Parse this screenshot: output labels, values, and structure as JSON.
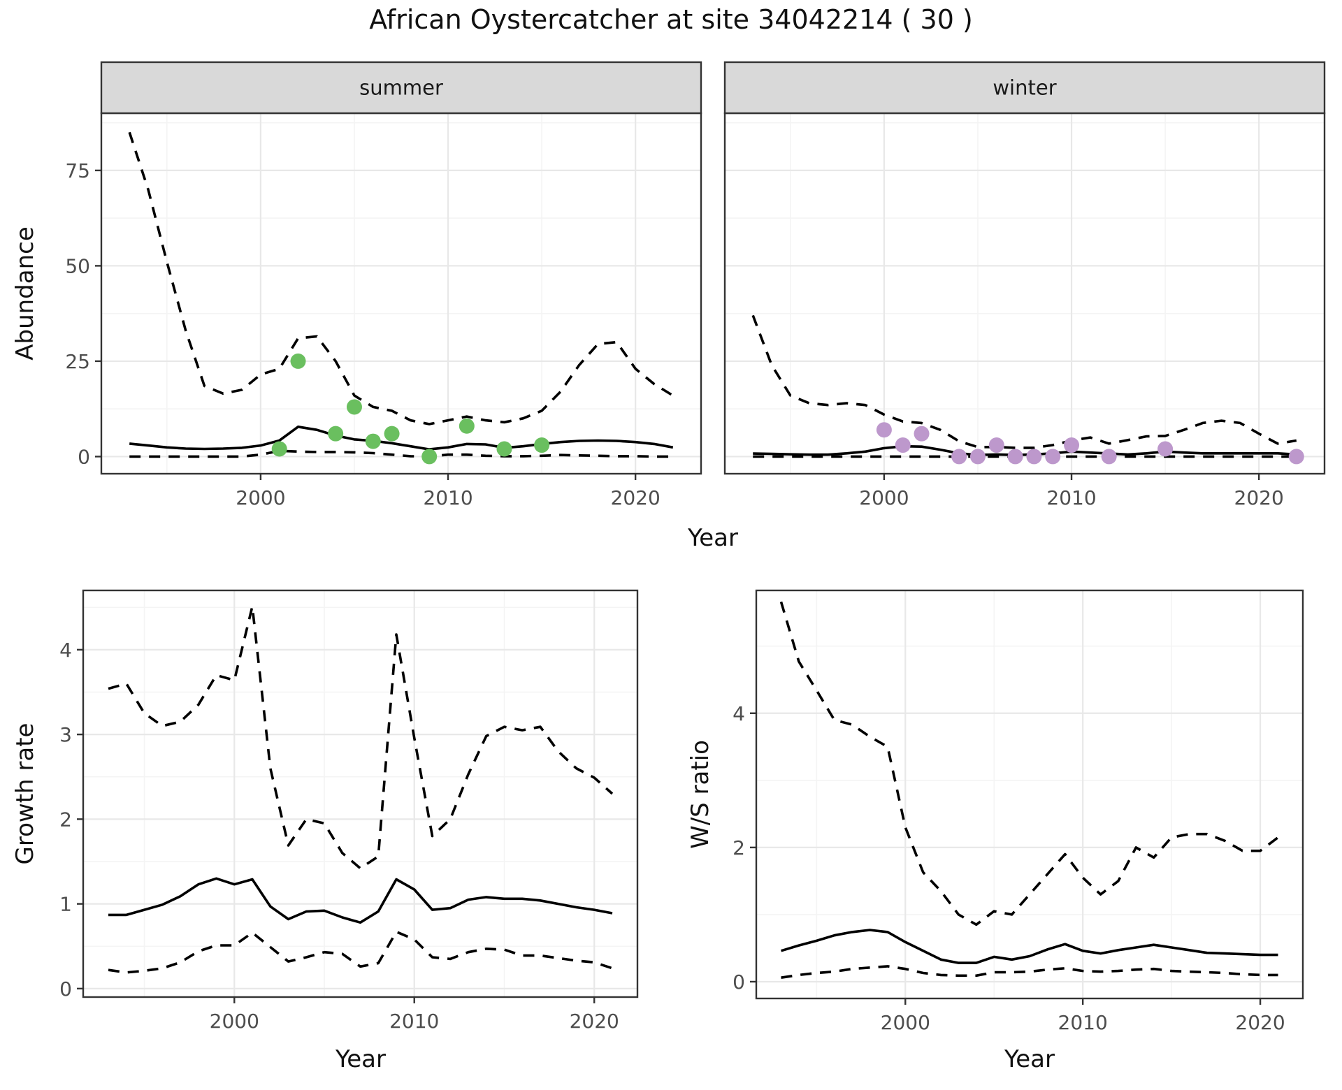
{
  "title": "African Oystercatcher at site 34042214 ( 30 )",
  "colors": {
    "summer_point": "#6abf5f",
    "winter_point": "#bd98cc",
    "line": "#000000",
    "strip_bg": "#d9d9d9",
    "strip_text": "#1a1a1a",
    "panel_border": "#333333",
    "grid_major": "#e8e8e8",
    "grid_minor": "#f4f4f4",
    "tick_label": "#4d4d4d",
    "background": "#ffffff"
  },
  "chart_data": [
    {
      "type": "line",
      "facet": "summer",
      "xlabel": "Year",
      "ylabel": "Abundance",
      "xlim": [
        1991.5,
        2023.5
      ],
      "ylim": [
        -4.5,
        90
      ],
      "x_ticks": [
        2000,
        2010,
        2020
      ],
      "x_minor": [
        1995,
        2005,
        2015
      ],
      "y_ticks": [
        0,
        25,
        50,
        75
      ],
      "y_minor": [
        12.5,
        37.5,
        62.5,
        87.5
      ],
      "grid": "on",
      "legend": "none",
      "years": [
        1993,
        1994,
        1995,
        1996,
        1997,
        1998,
        1999,
        2000,
        2001,
        2002,
        2003,
        2004,
        2005,
        2006,
        2007,
        2008,
        2009,
        2010,
        2011,
        2012,
        2013,
        2014,
        2015,
        2016,
        2017,
        2018,
        2019,
        2020,
        2021,
        2022
      ],
      "series": [
        {
          "name": "ci_upper",
          "style": "dashed",
          "values": [
            85,
            70,
            51,
            33,
            18.5,
            16.5,
            17.5,
            21.5,
            23,
            31,
            31.5,
            25,
            16,
            13,
            12,
            9.5,
            8.5,
            9.5,
            10.5,
            9.5,
            9,
            10,
            12,
            17,
            24,
            29.5,
            30,
            23,
            19,
            16
          ]
        },
        {
          "name": "median",
          "style": "solid",
          "values": [
            3.4,
            2.9,
            2.4,
            2.1,
            2.0,
            2.1,
            2.3,
            2.9,
            4.2,
            7.8,
            7.0,
            5.5,
            4.5,
            4.1,
            3.5,
            2.7,
            1.9,
            2.4,
            3.3,
            3.2,
            2.3,
            2.7,
            3.3,
            3.8,
            4.1,
            4.2,
            4.1,
            3.8,
            3.3,
            2.4
          ]
        },
        {
          "name": "ci_lower",
          "style": "dashed",
          "values": [
            0,
            0,
            0,
            0,
            0,
            0,
            0,
            0.5,
            1.5,
            1.3,
            1.2,
            1.2,
            1.1,
            0.9,
            0.5,
            0.1,
            0,
            0.5,
            0.5,
            0.2,
            0.1,
            0.1,
            0.2,
            0.4,
            0.3,
            0.2,
            0.1,
            0.1,
            0,
            0
          ]
        }
      ],
      "points": {
        "name": "observed_counts_summer",
        "color": "#6abf5f",
        "data": [
          [
            2001,
            2
          ],
          [
            2002,
            25
          ],
          [
            2004,
            6
          ],
          [
            2005,
            13
          ],
          [
            2006,
            4
          ],
          [
            2007,
            6
          ],
          [
            2009,
            0
          ],
          [
            2011,
            8
          ],
          [
            2013,
            2
          ],
          [
            2015,
            3
          ]
        ]
      }
    },
    {
      "type": "line",
      "facet": "winter",
      "xlabel": "Year",
      "ylabel": "Abundance",
      "xlim": [
        1991.5,
        2023.5
      ],
      "ylim": [
        -4.5,
        90
      ],
      "x_ticks": [
        2000,
        2010,
        2020
      ],
      "x_minor": [
        1995,
        2005,
        2015
      ],
      "y_ticks": [
        0,
        25,
        50,
        75
      ],
      "y_minor": [
        12.5,
        37.5,
        62.5,
        87.5
      ],
      "grid": "on",
      "legend": "none",
      "years": [
        1993,
        1994,
        1995,
        1996,
        1997,
        1998,
        1999,
        2000,
        2001,
        2002,
        2003,
        2004,
        2005,
        2006,
        2007,
        2008,
        2009,
        2010,
        2011,
        2012,
        2013,
        2014,
        2015,
        2016,
        2017,
        2018,
        2019,
        2020,
        2021,
        2022
      ],
      "series": [
        {
          "name": "ci_upper",
          "style": "dashed",
          "values": [
            37,
            24,
            16,
            14,
            13.5,
            14,
            13.5,
            11,
            9.2,
            8.8,
            7,
            4,
            2.5,
            2.5,
            2.3,
            2.3,
            3,
            4.2,
            5,
            3.4,
            4.3,
            5.3,
            5.4,
            7,
            8.8,
            9.4,
            8.8,
            6,
            3.4,
            4.2
          ]
        },
        {
          "name": "median",
          "style": "solid",
          "values": [
            0.8,
            0.7,
            0.6,
            0.5,
            0.5,
            0.85,
            1.3,
            2.2,
            2.7,
            2.6,
            1.8,
            0.85,
            0.4,
            0.55,
            0.4,
            0.55,
            0.85,
            1.3,
            1.05,
            0.8,
            0.55,
            0.85,
            1.3,
            1.05,
            0.85,
            0.85,
            0.85,
            0.85,
            0.85,
            0.55
          ]
        },
        {
          "name": "ci_lower",
          "style": "dashed",
          "values": [
            0,
            0,
            0,
            0,
            0,
            0,
            0,
            0,
            0,
            0,
            0,
            0,
            0,
            0,
            0,
            0,
            0,
            0,
            0,
            0,
            0,
            0,
            0,
            0,
            0,
            0,
            0,
            0,
            0,
            0
          ]
        }
      ],
      "points": {
        "name": "observed_counts_winter",
        "color": "#bd98cc",
        "data": [
          [
            2000,
            7
          ],
          [
            2001,
            3
          ],
          [
            2002,
            6
          ],
          [
            2004,
            0
          ],
          [
            2005,
            0
          ],
          [
            2006,
            3
          ],
          [
            2007,
            0
          ],
          [
            2008,
            0
          ],
          [
            2009,
            0
          ],
          [
            2010,
            3
          ],
          [
            2012,
            0
          ],
          [
            2015,
            2
          ],
          [
            2022,
            0
          ]
        ]
      }
    },
    {
      "type": "line",
      "facet": "",
      "xlabel": "Year",
      "ylabel": "Growth rate",
      "xlim": [
        1991.6,
        2022.4
      ],
      "ylim": [
        -0.1,
        4.7
      ],
      "x_ticks": [
        2000,
        2010,
        2020
      ],
      "x_minor": [
        1995,
        2005,
        2015
      ],
      "y_ticks": [
        0,
        1,
        2,
        3,
        4
      ],
      "y_minor": [
        0.5,
        1.5,
        2.5,
        3.5,
        4.5
      ],
      "grid": "on",
      "legend": "none",
      "years": [
        1993,
        1994,
        1995,
        1996,
        1997,
        1998,
        1999,
        2000,
        2001,
        2002,
        2003,
        2004,
        2005,
        2006,
        2007,
        2008,
        2009,
        2010,
        2011,
        2012,
        2013,
        2014,
        2015,
        2016,
        2017,
        2018,
        2019,
        2020,
        2021
      ],
      "series": [
        {
          "name": "ci_upper",
          "style": "dashed",
          "values": [
            3.54,
            3.6,
            3.25,
            3.1,
            3.15,
            3.35,
            3.7,
            3.64,
            4.51,
            2.6,
            1.69,
            2.0,
            1.95,
            1.6,
            1.42,
            1.56,
            4.18,
            2.96,
            1.8,
            2.0,
            2.53,
            2.98,
            3.09,
            3.05,
            3.09,
            2.8,
            2.6,
            2.49,
            2.3
          ]
        },
        {
          "name": "median",
          "style": "solid",
          "values": [
            0.87,
            0.87,
            0.93,
            0.99,
            1.09,
            1.23,
            1.3,
            1.23,
            1.29,
            0.97,
            0.82,
            0.91,
            0.92,
            0.84,
            0.78,
            0.91,
            1.29,
            1.17,
            0.93,
            0.95,
            1.05,
            1.08,
            1.06,
            1.06,
            1.04,
            1.0,
            0.96,
            0.93,
            0.89
          ]
        },
        {
          "name": "ci_lower",
          "style": "dashed",
          "values": [
            0.22,
            0.19,
            0.21,
            0.24,
            0.31,
            0.44,
            0.51,
            0.51,
            0.66,
            0.49,
            0.32,
            0.37,
            0.43,
            0.41,
            0.26,
            0.3,
            0.67,
            0.58,
            0.37,
            0.35,
            0.43,
            0.47,
            0.46,
            0.39,
            0.39,
            0.36,
            0.33,
            0.31,
            0.24
          ]
        }
      ],
      "points": null
    },
    {
      "type": "line",
      "facet": "",
      "xlabel": "Year",
      "ylabel": "W/S ratio",
      "xlim": [
        1991.6,
        2022.4
      ],
      "ylim": [
        -0.25,
        5.83
      ],
      "x_ticks": [
        2000,
        2010,
        2020
      ],
      "x_minor": [
        1995,
        2005,
        2015
      ],
      "y_ticks": [
        0,
        2,
        4
      ],
      "y_minor": [
        1,
        3,
        5
      ],
      "grid": "on",
      "legend": "none",
      "years": [
        1993,
        1994,
        1995,
        1996,
        1997,
        1998,
        1999,
        2000,
        2001,
        2002,
        2003,
        2004,
        2005,
        2006,
        2007,
        2008,
        2009,
        2010,
        2011,
        2012,
        2013,
        2014,
        2015,
        2016,
        2017,
        2018,
        2019,
        2020,
        2021
      ],
      "series": [
        {
          "name": "ci_upper",
          "style": "dashed",
          "values": [
            5.66,
            4.77,
            4.34,
            3.9,
            3.83,
            3.65,
            3.5,
            2.3,
            1.63,
            1.35,
            1.0,
            0.85,
            1.05,
            1.0,
            1.3,
            1.6,
            1.9,
            1.55,
            1.3,
            1.5,
            2.0,
            1.85,
            2.15,
            2.2,
            2.2,
            2.1,
            1.95,
            1.95,
            2.15
          ]
        },
        {
          "name": "median",
          "style": "solid",
          "values": [
            0.46,
            0.54,
            0.61,
            0.69,
            0.74,
            0.77,
            0.74,
            0.59,
            0.46,
            0.33,
            0.28,
            0.28,
            0.37,
            0.33,
            0.38,
            0.48,
            0.56,
            0.46,
            0.42,
            0.47,
            0.51,
            0.55,
            0.51,
            0.47,
            0.43,
            0.42,
            0.41,
            0.4,
            0.4
          ]
        },
        {
          "name": "ci_lower",
          "style": "dashed",
          "values": [
            0.06,
            0.1,
            0.13,
            0.15,
            0.19,
            0.21,
            0.23,
            0.19,
            0.13,
            0.1,
            0.09,
            0.09,
            0.14,
            0.14,
            0.15,
            0.18,
            0.2,
            0.16,
            0.15,
            0.16,
            0.18,
            0.19,
            0.16,
            0.15,
            0.14,
            0.13,
            0.11,
            0.1,
            0.1
          ]
        }
      ],
      "points": null
    }
  ]
}
